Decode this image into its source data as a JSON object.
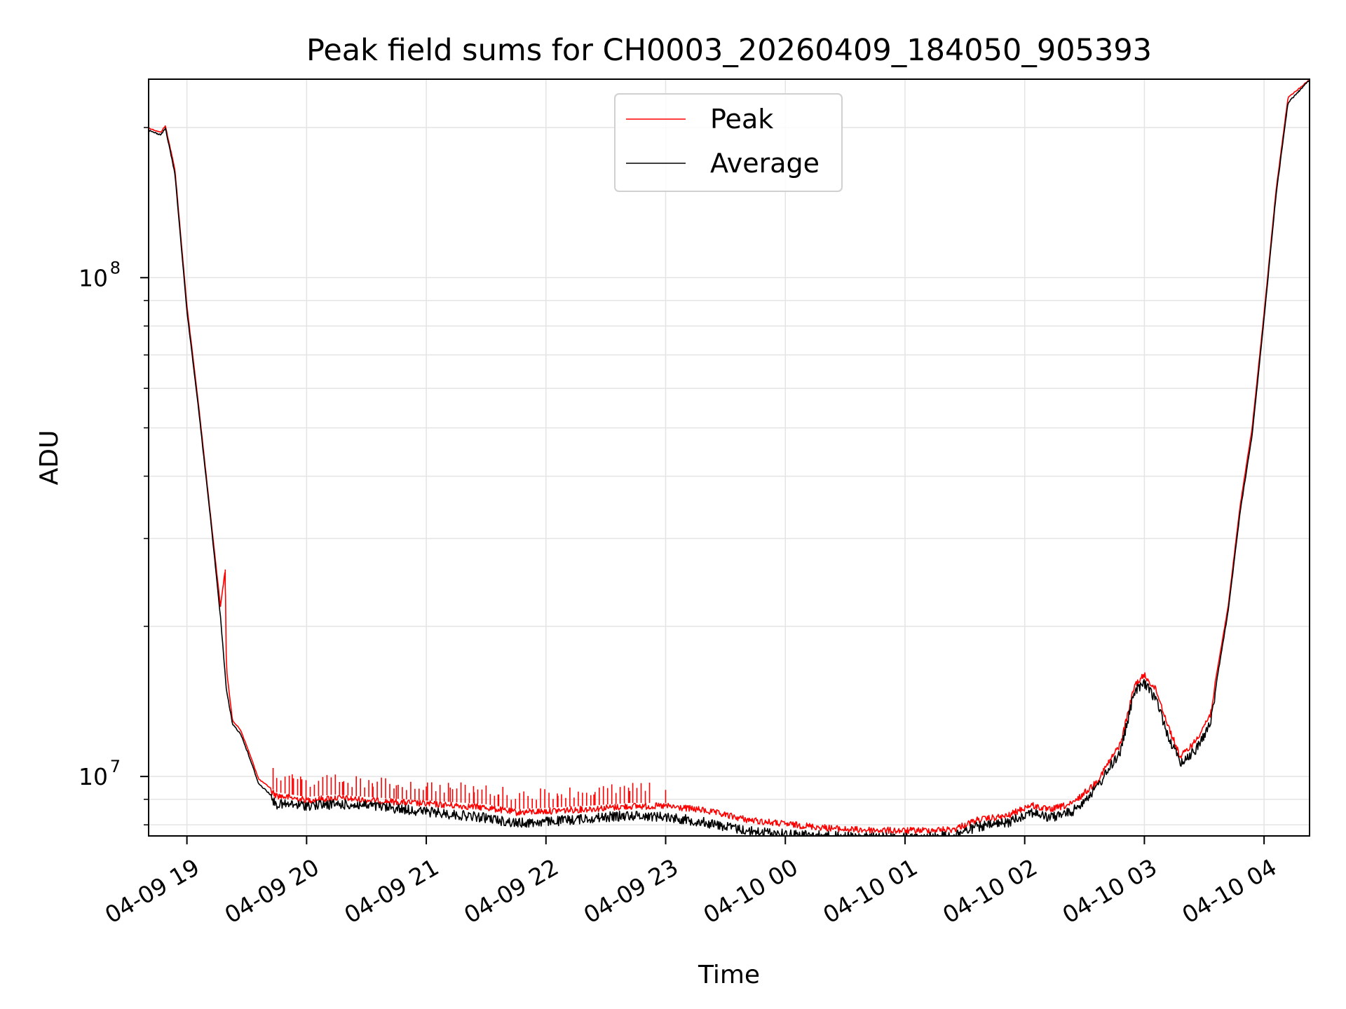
{
  "chart_data": {
    "type": "line",
    "title": "Peak field sums for CH0003_20260409_184050_905393",
    "xlabel": "Time",
    "ylabel": "ADU",
    "yscale": "log",
    "ylim": [
      7600000,
      250000000
    ],
    "xlim_hours": [
      18.68,
      28.38
    ],
    "grid": true,
    "legend_position": "upper center",
    "x_ticks": [
      {
        "label": "04-09 19",
        "hour": 19
      },
      {
        "label": "04-09 20",
        "hour": 20
      },
      {
        "label": "04-09 21",
        "hour": 21
      },
      {
        "label": "04-09 22",
        "hour": 22
      },
      {
        "label": "04-09 23",
        "hour": 23
      },
      {
        "label": "04-10 00",
        "hour": 24
      },
      {
        "label": "04-10 01",
        "hour": 25
      },
      {
        "label": "04-10 02",
        "hour": 26
      },
      {
        "label": "04-10 03",
        "hour": 27
      },
      {
        "label": "04-10 04",
        "hour": 28
      }
    ],
    "y_ticks": [
      {
        "base": "10",
        "exp": "7",
        "value": 10000000
      },
      {
        "base": "10",
        "exp": "8",
        "value": 100000000
      }
    ],
    "series": [
      {
        "name": "Peak",
        "color": "#ff0000",
        "noise": 0.03,
        "points": [
          [
            18.68,
            200000000
          ],
          [
            18.78,
            196000000
          ],
          [
            18.82,
            202000000
          ],
          [
            18.9,
            165000000
          ],
          [
            19.0,
            88000000
          ],
          [
            19.1,
            55000000
          ],
          [
            19.2,
            33000000
          ],
          [
            19.28,
            22000000
          ],
          [
            19.32,
            26000000
          ],
          [
            19.33,
            16500000
          ],
          [
            19.38,
            13000000
          ],
          [
            19.45,
            12400000
          ],
          [
            19.52,
            11200000
          ],
          [
            19.6,
            9900000
          ],
          [
            19.75,
            9300000
          ],
          [
            20.0,
            9100000
          ],
          [
            20.25,
            9200000
          ],
          [
            20.5,
            9100000
          ],
          [
            21.0,
            8950000
          ],
          [
            21.5,
            8800000
          ],
          [
            21.75,
            8600000
          ],
          [
            22.0,
            8650000
          ],
          [
            22.4,
            8750000
          ],
          [
            22.7,
            8850000
          ],
          [
            23.0,
            8850000
          ],
          [
            23.3,
            8700000
          ],
          [
            23.7,
            8300000
          ],
          [
            24.0,
            8150000
          ],
          [
            24.5,
            7950000
          ],
          [
            25.0,
            7900000
          ],
          [
            25.4,
            7950000
          ],
          [
            25.6,
            8300000
          ],
          [
            25.85,
            8450000
          ],
          [
            26.05,
            8900000
          ],
          [
            26.2,
            8700000
          ],
          [
            26.4,
            8950000
          ],
          [
            26.6,
            9900000
          ],
          [
            26.8,
            11800000
          ],
          [
            26.92,
            15500000
          ],
          [
            27.0,
            16200000
          ],
          [
            27.1,
            15100000
          ],
          [
            27.2,
            12800000
          ],
          [
            27.3,
            11100000
          ],
          [
            27.42,
            11900000
          ],
          [
            27.55,
            13500000
          ],
          [
            27.7,
            22000000
          ],
          [
            27.8,
            35000000
          ],
          [
            27.9,
            50000000
          ],
          [
            28.0,
            85000000
          ],
          [
            28.1,
            150000000
          ],
          [
            28.2,
            230000000
          ],
          [
            28.38,
            250000000
          ]
        ],
        "spikes": [
          [
            19.32,
            24000000
          ],
          [
            19.72,
            10400000
          ],
          [
            19.82,
            10000000
          ],
          [
            19.88,
            10100000
          ],
          [
            19.95,
            10000000
          ],
          [
            20.1,
            9800000
          ],
          [
            20.3,
            9750000
          ],
          [
            20.55,
            9700000
          ],
          [
            20.75,
            9600000
          ],
          [
            21.0,
            9550000
          ],
          [
            21.2,
            9500000
          ],
          [
            21.4,
            9300000
          ],
          [
            21.6,
            9200000
          ],
          [
            21.85,
            9100000
          ],
          [
            22.1,
            9150000
          ],
          [
            22.4,
            9200000
          ],
          [
            22.7,
            9350000
          ],
          [
            23.0,
            9400000
          ]
        ]
      },
      {
        "name": "Average",
        "color": "#000000",
        "noise": 0.045,
        "points": [
          [
            18.68,
            198000000
          ],
          [
            18.78,
            194000000
          ],
          [
            18.82,
            200000000
          ],
          [
            18.9,
            162000000
          ],
          [
            19.0,
            86000000
          ],
          [
            19.1,
            54000000
          ],
          [
            19.2,
            32500000
          ],
          [
            19.28,
            21000000
          ],
          [
            19.33,
            15000000
          ],
          [
            19.38,
            12800000
          ],
          [
            19.45,
            12200000
          ],
          [
            19.52,
            11000000
          ],
          [
            19.6,
            9700000
          ],
          [
            19.75,
            9000000
          ],
          [
            20.0,
            8950000
          ],
          [
            20.25,
            9000000
          ],
          [
            20.5,
            8950000
          ],
          [
            21.0,
            8700000
          ],
          [
            21.5,
            8450000
          ],
          [
            21.75,
            8250000
          ],
          [
            22.0,
            8300000
          ],
          [
            22.4,
            8450000
          ],
          [
            22.7,
            8550000
          ],
          [
            23.0,
            8500000
          ],
          [
            23.3,
            8300000
          ],
          [
            23.7,
            7950000
          ],
          [
            24.0,
            7850000
          ],
          [
            24.5,
            7750000
          ],
          [
            25.0,
            7700000
          ],
          [
            25.4,
            7800000
          ],
          [
            25.6,
            8100000
          ],
          [
            25.85,
            8250000
          ],
          [
            26.05,
            8700000
          ],
          [
            26.2,
            8450000
          ],
          [
            26.4,
            8700000
          ],
          [
            26.6,
            9700000
          ],
          [
            26.8,
            11500000
          ],
          [
            26.92,
            15200000
          ],
          [
            27.0,
            15700000
          ],
          [
            27.1,
            14600000
          ],
          [
            27.2,
            12300000
          ],
          [
            27.3,
            10900000
          ],
          [
            27.42,
            11500000
          ],
          [
            27.55,
            13000000
          ],
          [
            27.7,
            21500000
          ],
          [
            27.8,
            34000000
          ],
          [
            27.9,
            48500000
          ],
          [
            28.0,
            83000000
          ],
          [
            28.1,
            147000000
          ],
          [
            28.2,
            225000000
          ],
          [
            28.38,
            250000000
          ]
        ],
        "spikes": []
      }
    ]
  }
}
